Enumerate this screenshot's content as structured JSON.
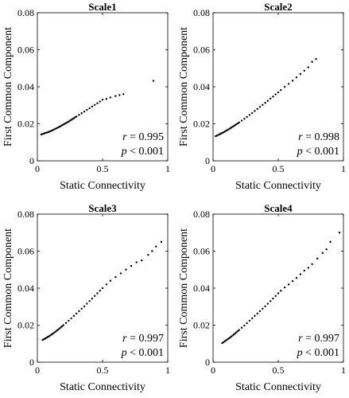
{
  "chart_data": [
    {
      "type": "scatter",
      "title": "Scale1",
      "xlabel": "Static Connectivity",
      "ylabel": "First Common Component",
      "xlim": [
        0,
        1
      ],
      "ylim": [
        0,
        0.08
      ],
      "xticks": [
        0,
        0.5,
        1
      ],
      "xtick_labels": [
        "0",
        "0.5",
        "1"
      ],
      "yticks": [
        0,
        0.02,
        0.04,
        0.06,
        0.08
      ],
      "ytick_labels": [
        "0",
        "0.02",
        "0.04",
        "0.06",
        "0.08"
      ],
      "grid": false,
      "stats": {
        "r_symbol": "r",
        "r_text": " = 0.995",
        "p_symbol": "p",
        "p_text": " < 0.001"
      },
      "points": [
        [
          0.03,
          0.0142
        ],
        [
          0.04,
          0.0145
        ],
        [
          0.05,
          0.0147
        ],
        [
          0.06,
          0.015
        ],
        [
          0.07,
          0.0152
        ],
        [
          0.08,
          0.0154
        ],
        [
          0.09,
          0.0157
        ],
        [
          0.1,
          0.016
        ],
        [
          0.11,
          0.0163
        ],
        [
          0.12,
          0.0166
        ],
        [
          0.13,
          0.017
        ],
        [
          0.14,
          0.0173
        ],
        [
          0.15,
          0.0177
        ],
        [
          0.16,
          0.018
        ],
        [
          0.17,
          0.0184
        ],
        [
          0.18,
          0.0188
        ],
        [
          0.19,
          0.0192
        ],
        [
          0.2,
          0.0196
        ],
        [
          0.21,
          0.02
        ],
        [
          0.22,
          0.0204
        ],
        [
          0.23,
          0.0208
        ],
        [
          0.24,
          0.0212
        ],
        [
          0.25,
          0.0217
        ],
        [
          0.26,
          0.0221
        ],
        [
          0.27,
          0.0226
        ],
        [
          0.28,
          0.023
        ],
        [
          0.29,
          0.0235
        ],
        [
          0.3,
          0.0239
        ],
        [
          0.32,
          0.0248
        ],
        [
          0.34,
          0.0257
        ],
        [
          0.36,
          0.0266
        ],
        [
          0.38,
          0.0275
        ],
        [
          0.4,
          0.0284
        ],
        [
          0.42,
          0.0293
        ],
        [
          0.44,
          0.0302
        ],
        [
          0.46,
          0.0311
        ],
        [
          0.48,
          0.032
        ],
        [
          0.5,
          0.033
        ],
        [
          0.53,
          0.0334
        ],
        [
          0.56,
          0.0342
        ],
        [
          0.6,
          0.035
        ],
        [
          0.63,
          0.0355
        ],
        [
          0.66,
          0.036
        ],
        [
          0.89,
          0.0432
        ]
      ]
    },
    {
      "type": "scatter",
      "title": "Scale2",
      "xlabel": "Static Connectivity",
      "ylabel": "First Common Component",
      "xlim": [
        0,
        1
      ],
      "ylim": [
        0,
        0.08
      ],
      "xticks": [
        0,
        0.5,
        1
      ],
      "xtick_labels": [
        "0",
        "0.5",
        "1"
      ],
      "yticks": [
        0,
        0.02,
        0.04,
        0.06,
        0.08
      ],
      "ytick_labels": [
        "0",
        "0.02",
        "0.04",
        "0.06",
        "0.08"
      ],
      "grid": false,
      "stats": {
        "r_symbol": "r",
        "r_text": " = 0.998",
        "p_symbol": "p",
        "p_text": " < 0.001"
      },
      "points": [
        [
          0.02,
          0.0133
        ],
        [
          0.03,
          0.0136
        ],
        [
          0.04,
          0.014
        ],
        [
          0.05,
          0.0143
        ],
        [
          0.06,
          0.0147
        ],
        [
          0.07,
          0.015
        ],
        [
          0.08,
          0.0154
        ],
        [
          0.09,
          0.0158
        ],
        [
          0.1,
          0.0162
        ],
        [
          0.11,
          0.0166
        ],
        [
          0.12,
          0.017
        ],
        [
          0.13,
          0.0175
        ],
        [
          0.14,
          0.0179
        ],
        [
          0.15,
          0.0184
        ],
        [
          0.16,
          0.0188
        ],
        [
          0.17,
          0.0193
        ],
        [
          0.18,
          0.0198
        ],
        [
          0.19,
          0.0202
        ],
        [
          0.2,
          0.0207
        ],
        [
          0.22,
          0.0217
        ],
        [
          0.24,
          0.0227
        ],
        [
          0.26,
          0.0237
        ],
        [
          0.28,
          0.0248
        ],
        [
          0.3,
          0.0258
        ],
        [
          0.32,
          0.0269
        ],
        [
          0.34,
          0.028
        ],
        [
          0.36,
          0.0291
        ],
        [
          0.38,
          0.0302
        ],
        [
          0.4,
          0.0313
        ],
        [
          0.42,
          0.0324
        ],
        [
          0.44,
          0.0336
        ],
        [
          0.46,
          0.0347
        ],
        [
          0.48,
          0.0359
        ],
        [
          0.5,
          0.037
        ],
        [
          0.52,
          0.0382
        ],
        [
          0.55,
          0.0399
        ],
        [
          0.58,
          0.0416
        ],
        [
          0.61,
          0.0433
        ],
        [
          0.64,
          0.0451
        ],
        [
          0.67,
          0.0469
        ],
        [
          0.7,
          0.0487
        ],
        [
          0.73,
          0.0505
        ],
        [
          0.76,
          0.0535
        ],
        [
          0.79,
          0.055
        ]
      ]
    },
    {
      "type": "scatter",
      "title": "Scale3",
      "xlabel": "Static Connectivity",
      "ylabel": "First Common Component",
      "xlim": [
        0,
        1
      ],
      "ylim": [
        0,
        0.08
      ],
      "xticks": [
        0,
        0.5,
        1
      ],
      "xtick_labels": [
        "0",
        "0.5",
        "1"
      ],
      "yticks": [
        0,
        0.02,
        0.04,
        0.06,
        0.08
      ],
      "ytick_labels": [
        "0",
        "0.02",
        "0.04",
        "0.06",
        "0.08"
      ],
      "grid": false,
      "stats": {
        "r_symbol": "r",
        "r_text": " = 0.997",
        "p_symbol": "p",
        "p_text": " < 0.001"
      },
      "points": [
        [
          0.04,
          0.012
        ],
        [
          0.05,
          0.0124
        ],
        [
          0.06,
          0.0128
        ],
        [
          0.07,
          0.0132
        ],
        [
          0.08,
          0.0136
        ],
        [
          0.09,
          0.014
        ],
        [
          0.1,
          0.0145
        ],
        [
          0.11,
          0.015
        ],
        [
          0.12,
          0.0155
        ],
        [
          0.13,
          0.016
        ],
        [
          0.14,
          0.0165
        ],
        [
          0.15,
          0.0171
        ],
        [
          0.16,
          0.0176
        ],
        [
          0.17,
          0.0182
        ],
        [
          0.18,
          0.0188
        ],
        [
          0.19,
          0.0194
        ],
        [
          0.2,
          0.02
        ],
        [
          0.22,
          0.0212
        ],
        [
          0.24,
          0.0224
        ],
        [
          0.26,
          0.0237
        ],
        [
          0.28,
          0.025
        ],
        [
          0.3,
          0.0263
        ],
        [
          0.32,
          0.0276
        ],
        [
          0.34,
          0.0289
        ],
        [
          0.36,
          0.0302
        ],
        [
          0.38,
          0.0316
        ],
        [
          0.4,
          0.033
        ],
        [
          0.42,
          0.0344
        ],
        [
          0.44,
          0.0358
        ],
        [
          0.46,
          0.0372
        ],
        [
          0.48,
          0.0386
        ],
        [
          0.5,
          0.04
        ],
        [
          0.53,
          0.042
        ],
        [
          0.56,
          0.044
        ],
        [
          0.6,
          0.046
        ],
        [
          0.64,
          0.048
        ],
        [
          0.68,
          0.05
        ],
        [
          0.72,
          0.052
        ],
        [
          0.76,
          0.054
        ],
        [
          0.8,
          0.055
        ],
        [
          0.85,
          0.058
        ],
        [
          0.88,
          0.06
        ],
        [
          0.91,
          0.0625
        ],
        [
          0.95,
          0.065
        ]
      ]
    },
    {
      "type": "scatter",
      "title": "Scale4",
      "xlabel": "Static Connectivity",
      "ylabel": "First Common Component",
      "xlim": [
        0,
        1
      ],
      "ylim": [
        0,
        0.08
      ],
      "xticks": [
        0,
        0.5,
        1
      ],
      "xtick_labels": [
        "0",
        "0.5",
        "1"
      ],
      "yticks": [
        0,
        0.02,
        0.04,
        0.06,
        0.08
      ],
      "ytick_labels": [
        "0",
        "0.02",
        "0.04",
        "0.06",
        "0.08"
      ],
      "grid": false,
      "stats": {
        "r_symbol": "r",
        "r_text": " = 0.997",
        "p_symbol": "p",
        "p_text": " < 0.001"
      },
      "points": [
        [
          0.07,
          0.0103
        ],
        [
          0.08,
          0.0108
        ],
        [
          0.09,
          0.0113
        ],
        [
          0.1,
          0.0118
        ],
        [
          0.11,
          0.0123
        ],
        [
          0.12,
          0.0128
        ],
        [
          0.13,
          0.0133
        ],
        [
          0.14,
          0.0139
        ],
        [
          0.15,
          0.0144
        ],
        [
          0.16,
          0.015
        ],
        [
          0.17,
          0.0156
        ],
        [
          0.18,
          0.0162
        ],
        [
          0.19,
          0.0168
        ],
        [
          0.2,
          0.0174
        ],
        [
          0.22,
          0.0186
        ],
        [
          0.24,
          0.0198
        ],
        [
          0.26,
          0.0211
        ],
        [
          0.28,
          0.0224
        ],
        [
          0.3,
          0.0237
        ],
        [
          0.32,
          0.025
        ],
        [
          0.34,
          0.0263
        ],
        [
          0.36,
          0.0276
        ],
        [
          0.38,
          0.0289
        ],
        [
          0.4,
          0.0302
        ],
        [
          0.42,
          0.0316
        ],
        [
          0.44,
          0.033
        ],
        [
          0.46,
          0.0344
        ],
        [
          0.48,
          0.0358
        ],
        [
          0.5,
          0.0372
        ],
        [
          0.52,
          0.0386
        ],
        [
          0.55,
          0.0404
        ],
        [
          0.58,
          0.042
        ],
        [
          0.61,
          0.0438
        ],
        [
          0.64,
          0.0455
        ],
        [
          0.67,
          0.0475
        ],
        [
          0.7,
          0.0495
        ],
        [
          0.73,
          0.051
        ],
        [
          0.76,
          0.053
        ],
        [
          0.8,
          0.056
        ],
        [
          0.84,
          0.059
        ],
        [
          0.87,
          0.061
        ],
        [
          0.9,
          0.065
        ],
        [
          0.97,
          0.07
        ]
      ]
    }
  ]
}
